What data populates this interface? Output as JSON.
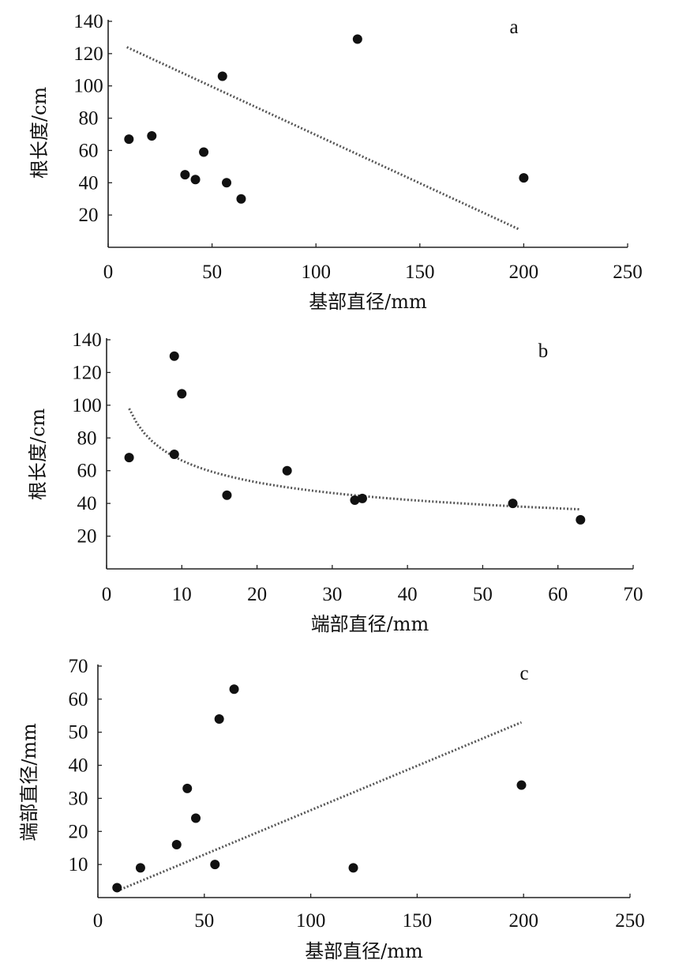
{
  "chart_data": [
    {
      "type": "scatter",
      "panel_label": "a",
      "xlabel": "基部直径/mm",
      "ylabel": "根长度/cm",
      "xlim": [
        0,
        250
      ],
      "ylim": [
        0,
        140
      ],
      "xticks": [
        0,
        50,
        100,
        150,
        200,
        250
      ],
      "yticks": [
        20,
        40,
        60,
        80,
        100,
        120,
        140
      ],
      "points": [
        {
          "x": 10,
          "y": 67
        },
        {
          "x": 21,
          "y": 69
        },
        {
          "x": 37,
          "y": 45
        },
        {
          "x": 42,
          "y": 42
        },
        {
          "x": 46,
          "y": 59
        },
        {
          "x": 55,
          "y": 106
        },
        {
          "x": 57,
          "y": 40
        },
        {
          "x": 64,
          "y": 30
        },
        {
          "x": 120,
          "y": 129
        },
        {
          "x": 200,
          "y": 43
        }
      ],
      "trendline": {
        "kind": "linear",
        "points": [
          {
            "x": 9,
            "y": 124
          },
          {
            "x": 198,
            "y": 11
          }
        ]
      },
      "grid": false,
      "legend": "none"
    },
    {
      "type": "scatter",
      "panel_label": "b",
      "xlabel": "端部直径/mm",
      "ylabel": "根长度/cm",
      "xlim": [
        0,
        70
      ],
      "ylim": [
        0,
        140
      ],
      "xticks": [
        0,
        10,
        20,
        30,
        40,
        50,
        60,
        70
      ],
      "yticks": [
        20,
        40,
        60,
        80,
        100,
        120,
        140
      ],
      "points": [
        {
          "x": 3,
          "y": 68
        },
        {
          "x": 9,
          "y": 130
        },
        {
          "x": 9,
          "y": 70
        },
        {
          "x": 10,
          "y": 107
        },
        {
          "x": 16,
          "y": 45
        },
        {
          "x": 24,
          "y": 60
        },
        {
          "x": 33,
          "y": 42
        },
        {
          "x": 34,
          "y": 43
        },
        {
          "x": 54,
          "y": 40
        },
        {
          "x": 63,
          "y": 30
        }
      ],
      "trendline": {
        "kind": "power",
        "a": 140,
        "b": -0.325,
        "x_range": [
          3,
          63
        ]
      },
      "grid": false,
      "legend": "none"
    },
    {
      "type": "scatter",
      "panel_label": "c",
      "xlabel": "基部直径/mm",
      "ylabel": "端部直径/mm",
      "xlim": [
        0,
        250
      ],
      "ylim": [
        0,
        70
      ],
      "xticks": [
        0,
        50,
        100,
        150,
        200,
        250
      ],
      "yticks": [
        10,
        20,
        30,
        40,
        50,
        60,
        70
      ],
      "points": [
        {
          "x": 9,
          "y": 3
        },
        {
          "x": 20,
          "y": 9
        },
        {
          "x": 37,
          "y": 16
        },
        {
          "x": 42,
          "y": 33
        },
        {
          "x": 46,
          "y": 24
        },
        {
          "x": 55,
          "y": 10
        },
        {
          "x": 57,
          "y": 54
        },
        {
          "x": 64,
          "y": 63
        },
        {
          "x": 120,
          "y": 9
        },
        {
          "x": 199,
          "y": 34
        }
      ],
      "trendline": {
        "kind": "linear",
        "points": [
          {
            "x": 9,
            "y": 2
          },
          {
            "x": 199,
            "y": 53
          }
        ]
      },
      "grid": false,
      "legend": "none"
    }
  ]
}
